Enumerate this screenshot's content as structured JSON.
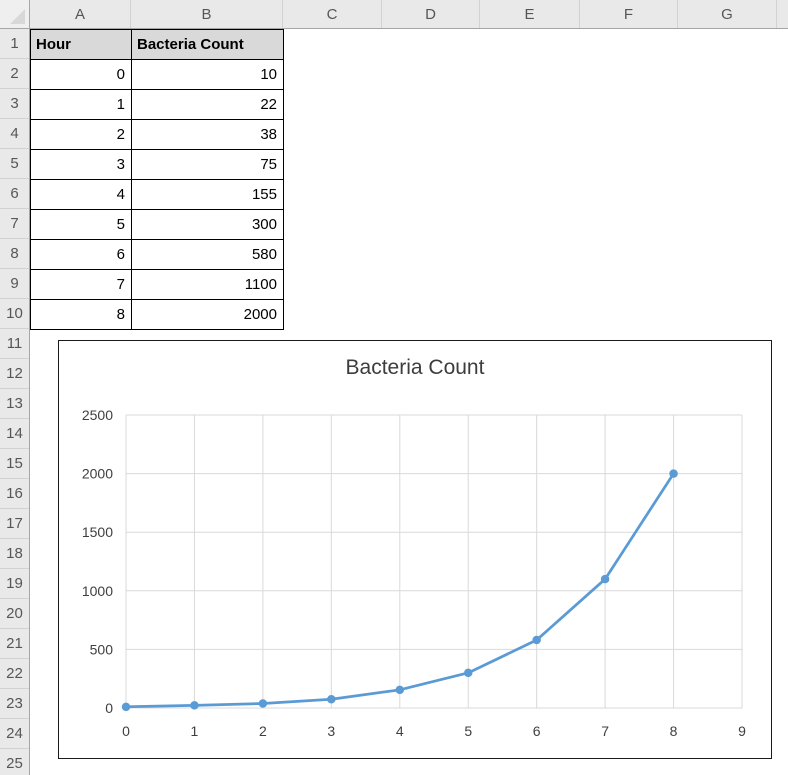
{
  "sheet": {
    "column_headers": [
      "A",
      "B",
      "C",
      "D",
      "E",
      "F",
      "G"
    ],
    "row_headers": [
      "1",
      "2",
      "3",
      "4",
      "5",
      "6",
      "7",
      "8",
      "9",
      "10",
      "11",
      "12",
      "13",
      "14",
      "15",
      "16",
      "17",
      "18",
      "19",
      "20",
      "21",
      "22",
      "23",
      "24",
      "25"
    ],
    "table": {
      "header": [
        "Hour",
        "Bacteria Count"
      ],
      "rows": [
        [
          0,
          10
        ],
        [
          1,
          22
        ],
        [
          2,
          38
        ],
        [
          3,
          75
        ],
        [
          4,
          155
        ],
        [
          5,
          300
        ],
        [
          6,
          580
        ],
        [
          7,
          1100
        ],
        [
          8,
          2000
        ]
      ]
    }
  },
  "chart_data": {
    "type": "line",
    "title": "Bacteria Count",
    "x": [
      0,
      1,
      2,
      3,
      4,
      5,
      6,
      7,
      8
    ],
    "y": [
      10,
      22,
      38,
      75,
      155,
      300,
      580,
      1100,
      2000
    ],
    "series": [
      {
        "name": "Bacteria Count"
      }
    ],
    "xlabel": "",
    "ylabel": "",
    "xlim": [
      0,
      9
    ],
    "ylim": [
      0,
      2500
    ],
    "x_ticks": [
      0,
      1,
      2,
      3,
      4,
      5,
      6,
      7,
      8,
      9
    ],
    "y_ticks": [
      0,
      500,
      1000,
      1500,
      2000,
      2500
    ],
    "grid": true,
    "legend": "none",
    "marker": "circle"
  },
  "colors": {
    "series_line": "#5B9BD5",
    "gridline": "#D9D9D9",
    "axis_text": "#3f3f3f",
    "chart_border": "#1a1a1a",
    "table_header_fill": "#D9D9D9",
    "sheet_header_bg": "#E9E9E9"
  }
}
